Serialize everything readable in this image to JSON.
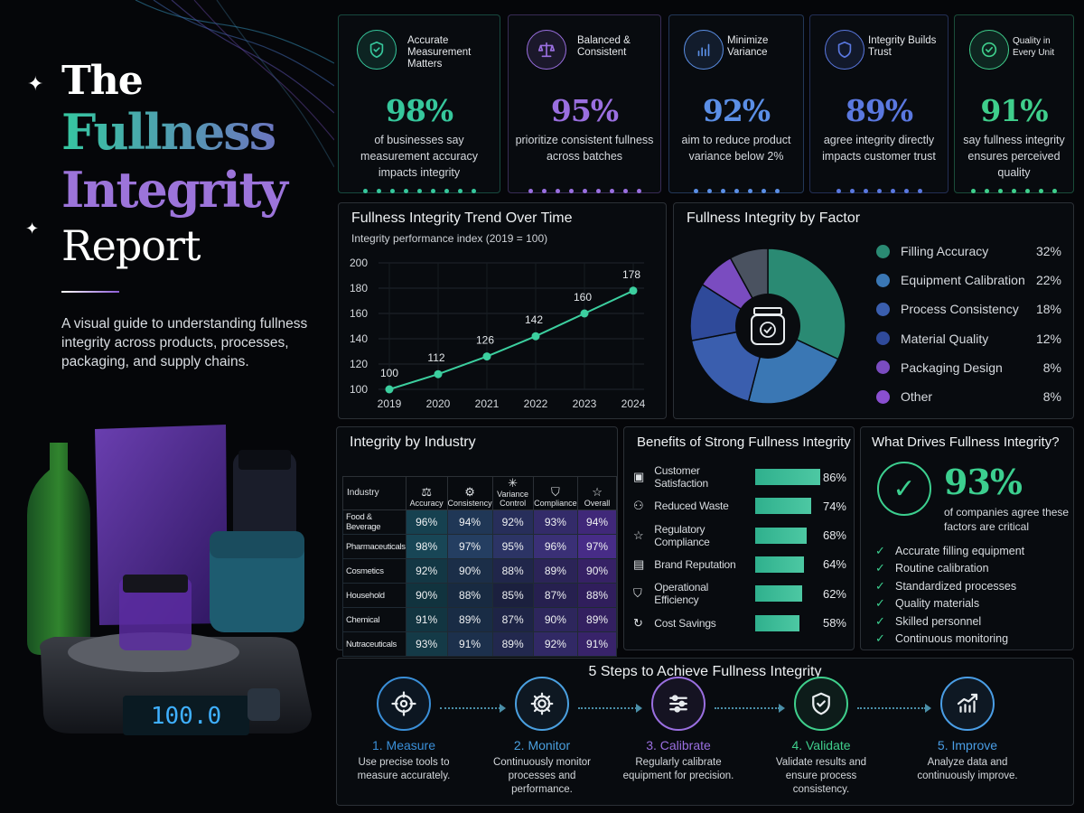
{
  "hero": {
    "title_line1": "The",
    "title_line2": "Fullness",
    "title_line3": "Integrity",
    "title_line4": "Report",
    "subtitle": "A visual guide to understanding fullness integrity across products, processes, packaging, and supply chains.",
    "scale_display": "100.0"
  },
  "stats": [
    {
      "label": "Accurate Measurement Matters",
      "value": "98%",
      "desc": "of businesses say measurement accuracy impacts integrity",
      "color": "#36c79c",
      "icon": "shield-check-icon"
    },
    {
      "label": "Balanced & Consistent",
      "value": "95%",
      "desc": "prioritize consistent fullness across batches",
      "color": "#9a6fe0",
      "icon": "balance-scale-icon"
    },
    {
      "label": "Minimize Variance",
      "value": "92%",
      "desc": "aim to reduce product variance below 2%",
      "color": "#5b8fe6",
      "icon": "bar-chart-icon"
    },
    {
      "label": "Integrity Builds Trust",
      "value": "89%",
      "desc": "agree integrity directly impacts customer trust",
      "color": "#5a78e0",
      "icon": "shield-icon"
    },
    {
      "label": "Quality in Every Unit",
      "value": "91%",
      "desc": "say fullness integrity ensures perceived quality",
      "color": "#3fcf8c",
      "icon": "check-circle-icon"
    }
  ],
  "colors": {
    "teal": "#2e8f77",
    "purple": "#7a4cc0",
    "blue": "#3d5fb0",
    "navy": "#2c3f8c",
    "green": "#3ccf8f"
  },
  "chart_data": [
    {
      "type": "line",
      "title": "Fullness Integrity Trend Over Time",
      "subtitle": "Integrity performance index (2019 = 100)",
      "x": [
        "2019",
        "2020",
        "2021",
        "2022",
        "2023",
        "2024"
      ],
      "values": [
        100,
        112,
        126,
        142,
        160,
        178
      ],
      "ylim": [
        100,
        200
      ],
      "yticks": [
        100,
        120,
        140,
        160,
        180,
        200
      ],
      "grid": true
    },
    {
      "type": "pie",
      "title": "Fullness Integrity by Factor",
      "categories": [
        "Filling Accuracy",
        "Equipment Calibration",
        "Process Consistency",
        "Material Quality",
        "Packaging Design",
        "Other"
      ],
      "values": [
        32,
        22,
        18,
        12,
        8,
        8
      ],
      "labels": [
        "32%",
        "22%",
        "18%",
        "12%",
        "8%",
        "8%"
      ],
      "colors": [
        "#2a8a73",
        "#3a77b4",
        "#3a5eae",
        "#2f4a9a",
        "#7a4cc0",
        "#4a5260"
      ],
      "legend": "right"
    },
    {
      "type": "heatmap",
      "title": "Integrity by Industry",
      "corner": "Industry",
      "columns": [
        "Accuracy",
        "Consistency",
        "Variance Control",
        "Compliance",
        "Overall"
      ],
      "column_icons": [
        "balance-scale-icon",
        "gear-icon",
        "variance-icon",
        "shield-icon",
        "star-icon"
      ],
      "rows": [
        {
          "name": "Food & Beverage",
          "values": [
            "96%",
            "94%",
            "92%",
            "93%",
            "94%"
          ]
        },
        {
          "name": "Pharmaceuticals",
          "values": [
            "98%",
            "97%",
            "95%",
            "96%",
            "97%"
          ]
        },
        {
          "name": "Cosmetics",
          "values": [
            "92%",
            "90%",
            "88%",
            "89%",
            "90%"
          ]
        },
        {
          "name": "Household",
          "values": [
            "90%",
            "88%",
            "85%",
            "87%",
            "88%"
          ]
        },
        {
          "name": "Chemical",
          "values": [
            "91%",
            "89%",
            "87%",
            "90%",
            "89%"
          ]
        },
        {
          "name": "Nutraceuticals",
          "values": [
            "93%",
            "91%",
            "89%",
            "92%",
            "91%"
          ]
        }
      ]
    },
    {
      "type": "bar",
      "title": "Benefits of Strong Fullness Integrity",
      "categories": [
        "Customer Satisfaction",
        "Reduced Waste",
        "Regulatory Compliance",
        "Brand Reputation",
        "Operational Efficiency",
        "Cost Savings"
      ],
      "icons": [
        "chat-icon",
        "user-icon",
        "star-icon",
        "id-card-icon",
        "shield-icon",
        "refresh-icon"
      ],
      "values": [
        86,
        74,
        68,
        64,
        62,
        58
      ],
      "labels": [
        "86%",
        "74%",
        "68%",
        "64%",
        "62%",
        "58%"
      ],
      "xlim": [
        0,
        100
      ]
    }
  ],
  "drivers": {
    "title": "What Drives Fullness Integrity?",
    "value": "93%",
    "desc": "of companies agree these factors are critical",
    "items": [
      "Accurate filling equipment",
      "Routine calibration",
      "Standardized processes",
      "Quality materials",
      "Skilled personnel",
      "Continuous monitoring"
    ]
  },
  "steps": {
    "title": "5 Steps to Achieve Fullness Integrity",
    "items": [
      {
        "name": "1. Measure",
        "desc": "Use precise tools to measure accurately.",
        "color": "#3a8fd8",
        "icon": "target-icon"
      },
      {
        "name": "2. Monitor",
        "desc": "Continuously monitor processes and performance.",
        "color": "#4aa0e0",
        "icon": "gear-icon"
      },
      {
        "name": "3. Calibrate",
        "desc": "Regularly calibrate equipment for precision.",
        "color": "#9a6fe0",
        "icon": "sliders-icon"
      },
      {
        "name": "4. Validate",
        "desc": "Validate results and ensure process consistency.",
        "color": "#3fcf8c",
        "icon": "shield-check-icon"
      },
      {
        "name": "5. Improve",
        "desc": "Analyze data and continuously improve.",
        "color": "#4a9ee6",
        "icon": "trend-up-icon"
      }
    ]
  }
}
